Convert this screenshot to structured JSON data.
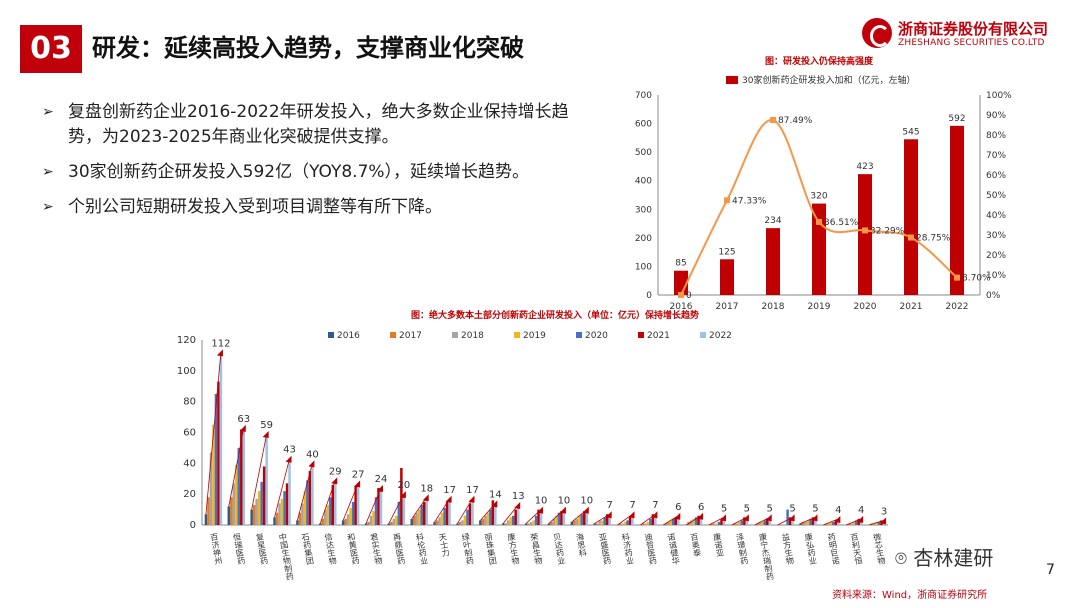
{
  "header": {
    "badge": "03",
    "title": "研发：延续高投入趋势，支撑商业化突破",
    "logo_cn": "浙商证券股份有限公司",
    "logo_en": "ZHESHANG SECURITIES CO.LTD"
  },
  "bullets": [
    "复盘创新药企业2016-2022年研发投入，绝大多数企业保持增长趋势，为2023-2025年商业化突破提供支撑。",
    "30家创新药企研发投入592亿（YOY8.7%），延续增长趋势。",
    "个别公司短期研发投入受到项目调整等有所下降。"
  ],
  "footer": {
    "watermark": "杏林建研",
    "page_number": "7",
    "source": "资料来源：Wind，浙商证券研究所"
  },
  "colors": {
    "brand_red": "#c0000b",
    "bar_red": "#c00000",
    "line_orange": "#f79646"
  },
  "chart_data": [
    {
      "type": "bar",
      "title": "图：研发投入仍保持高强度",
      "legend": "30家创新药企研发投入加和（亿元，左轴）",
      "categories": [
        "2016",
        "2017",
        "2018",
        "2019",
        "2020",
        "2021",
        "2022"
      ],
      "values": [
        85,
        125,
        234,
        320,
        423,
        545,
        592
      ],
      "secondary_line": {
        "values": [
          0,
          47.33,
          87.49,
          36.51,
          32.29,
          28.75,
          8.7
        ],
        "labels": [
          "0",
          "47.33%",
          "87.49%",
          "36.51%",
          "32.29%",
          "28.75%",
          "8.70%"
        ]
      },
      "ylim": [
        0,
        700
      ],
      "yticks": [
        "0",
        "100",
        "200",
        "300",
        "400",
        "500",
        "600",
        "700"
      ],
      "y2lim": [
        0,
        100
      ],
      "y2ticks": [
        "0%",
        "10%",
        "20%",
        "30%",
        "40%",
        "50%",
        "60%",
        "70%",
        "80%",
        "90%",
        "100%"
      ],
      "grid": false,
      "legend_position": "top"
    },
    {
      "type": "bar",
      "title": "图：绝大多数本土部分创新药企业研发投入（单位：亿元）保持增长趋势",
      "categories": [
        "百济神州",
        "恒瑞医药",
        "复星医药",
        "中国生物制药",
        "石药集团",
        "信达生物",
        "和黄医药",
        "君实生物",
        "再鼎医药",
        "科伦药业",
        "天士力",
        "绿叶制药",
        "丽珠集团",
        "康方生物",
        "荣昌生物",
        "贝达药业",
        "海思科",
        "亚盛医药",
        "科济药业",
        "迪哲医药",
        "诺诚健华",
        "百奥泰",
        "康诺亚",
        "泽璟制药",
        "康宁杰瑞制药",
        "益方生物",
        "康弘药业",
        "药明巨诺",
        "百利天恒",
        "微芯生物"
      ],
      "series": [
        {
          "name": "2016",
          "values": [
            7,
            12,
            10,
            5,
            3,
            1,
            3,
            1,
            1,
            4,
            2,
            1,
            3,
            1,
            1,
            1,
            2,
            1,
            0,
            0,
            0,
            0,
            0,
            0,
            0,
            0,
            1,
            0,
            0,
            0
          ]
        },
        {
          "name": "2017",
          "values": [
            18,
            18,
            13,
            8,
            8,
            4,
            4,
            2,
            2,
            6,
            3,
            2,
            4,
            1,
            1,
            2,
            3,
            1,
            1,
            1,
            1,
            2,
            1,
            1,
            1,
            0,
            2,
            1,
            1,
            1
          ]
        },
        {
          "name": "2018",
          "values": [
            47,
            27,
            17,
            14,
            14,
            10,
            7,
            6,
            4,
            8,
            5,
            3,
            6,
            3,
            2,
            4,
            4,
            3,
            1,
            1,
            2,
            3,
            1,
            1,
            2,
            0,
            2,
            1,
            1,
            1
          ]
        },
        {
          "name": "2019",
          "values": [
            65,
            39,
            22,
            17,
            22,
            13,
            11,
            9,
            6,
            10,
            8,
            6,
            8,
            5,
            3,
            6,
            6,
            3,
            2,
            2,
            3,
            4,
            1,
            2,
            2,
            0,
            3,
            2,
            2,
            2
          ]
        },
        {
          "name": "2020",
          "values": [
            85,
            50,
            28,
            22,
            29,
            18,
            15,
            18,
            15,
            13,
            11,
            10,
            10,
            6,
            6,
            8,
            7,
            5,
            3,
            4,
            4,
            5,
            2,
            3,
            3,
            10,
            4,
            2,
            3,
            2
          ]
        },
        {
          "name": "2021",
          "values": [
            93,
            62,
            38,
            27,
            35,
            26,
            25,
            24,
            37,
            15,
            15,
            14,
            16,
            10,
            10,
            9,
            9,
            7,
            5,
            7,
            5,
            6,
            3,
            5,
            4,
            5,
            5,
            3,
            4,
            3
          ]
        },
        {
          "name": "2022",
          "values": [
            112,
            63,
            59,
            43,
            40,
            29,
            27,
            24,
            20,
            18,
            17,
            17,
            14,
            13,
            10,
            10,
            10,
            7,
            7,
            7,
            6,
            6,
            5,
            5,
            5,
            5,
            5,
            4,
            4,
            3
          ]
        }
      ],
      "bar_labels": [
        "112",
        "63",
        "59",
        "43",
        "40",
        "29",
        "27",
        "24",
        "20",
        "18",
        "17",
        "17",
        "14",
        "13",
        "10",
        "10",
        "10",
        "7",
        "7",
        "7",
        "6",
        "6",
        "5",
        "5",
        "5",
        "5",
        "5",
        "4",
        "4",
        "3"
      ],
      "ylim": [
        0,
        120
      ],
      "yticks": [
        "0",
        "20",
        "40",
        "60",
        "80",
        "100",
        "120"
      ],
      "grid": false,
      "legend_position": "top",
      "colors": [
        "#2e5c8a",
        "#e07b2a",
        "#a5a5a5",
        "#f2b61b",
        "#4472c4",
        "#c00000",
        "#9dc3e6"
      ]
    }
  ]
}
